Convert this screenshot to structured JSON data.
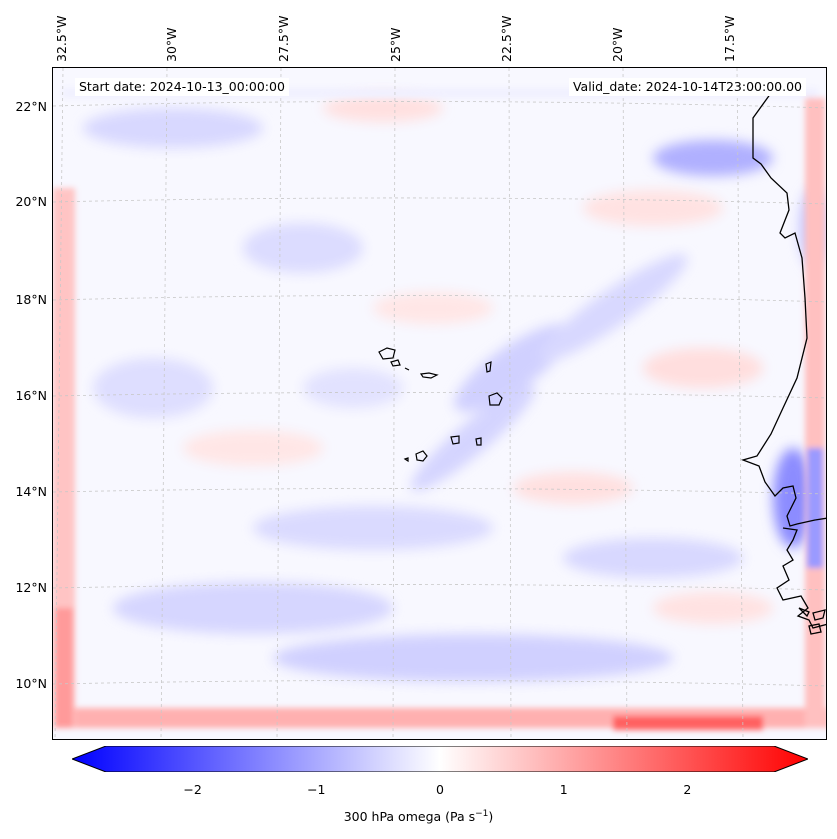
{
  "header": {
    "start_date": "Start date: 2024-10-13_00:00:00",
    "valid_date": "Valid_date: 2024-10-14T23:00:00.00"
  },
  "longitude_labels": [
    "32.5°W",
    "30°W",
    "27.5°W",
    "25°W",
    "22.5°W",
    "20°W",
    "17.5°W"
  ],
  "latitude_labels": [
    "22°N",
    "20°N",
    "18°N",
    "16°N",
    "14°N",
    "12°N",
    "10°N"
  ],
  "colorbar": {
    "ticks": [
      "−2",
      "−1",
      "0",
      "1",
      "2"
    ],
    "title": "300 hPa omega (Pa s",
    "title_sup": "−1",
    "title_end": ")",
    "range": [
      -2.7,
      2.7
    ],
    "colormap": "bwr",
    "min_color": "#0000ff",
    "mid_color": "#ffffff",
    "max_color": "#ff0000"
  },
  "map": {
    "coastline_color": "#000000",
    "gridline_color": "#c8c8c8",
    "field_background": "#f8f8ff"
  }
}
